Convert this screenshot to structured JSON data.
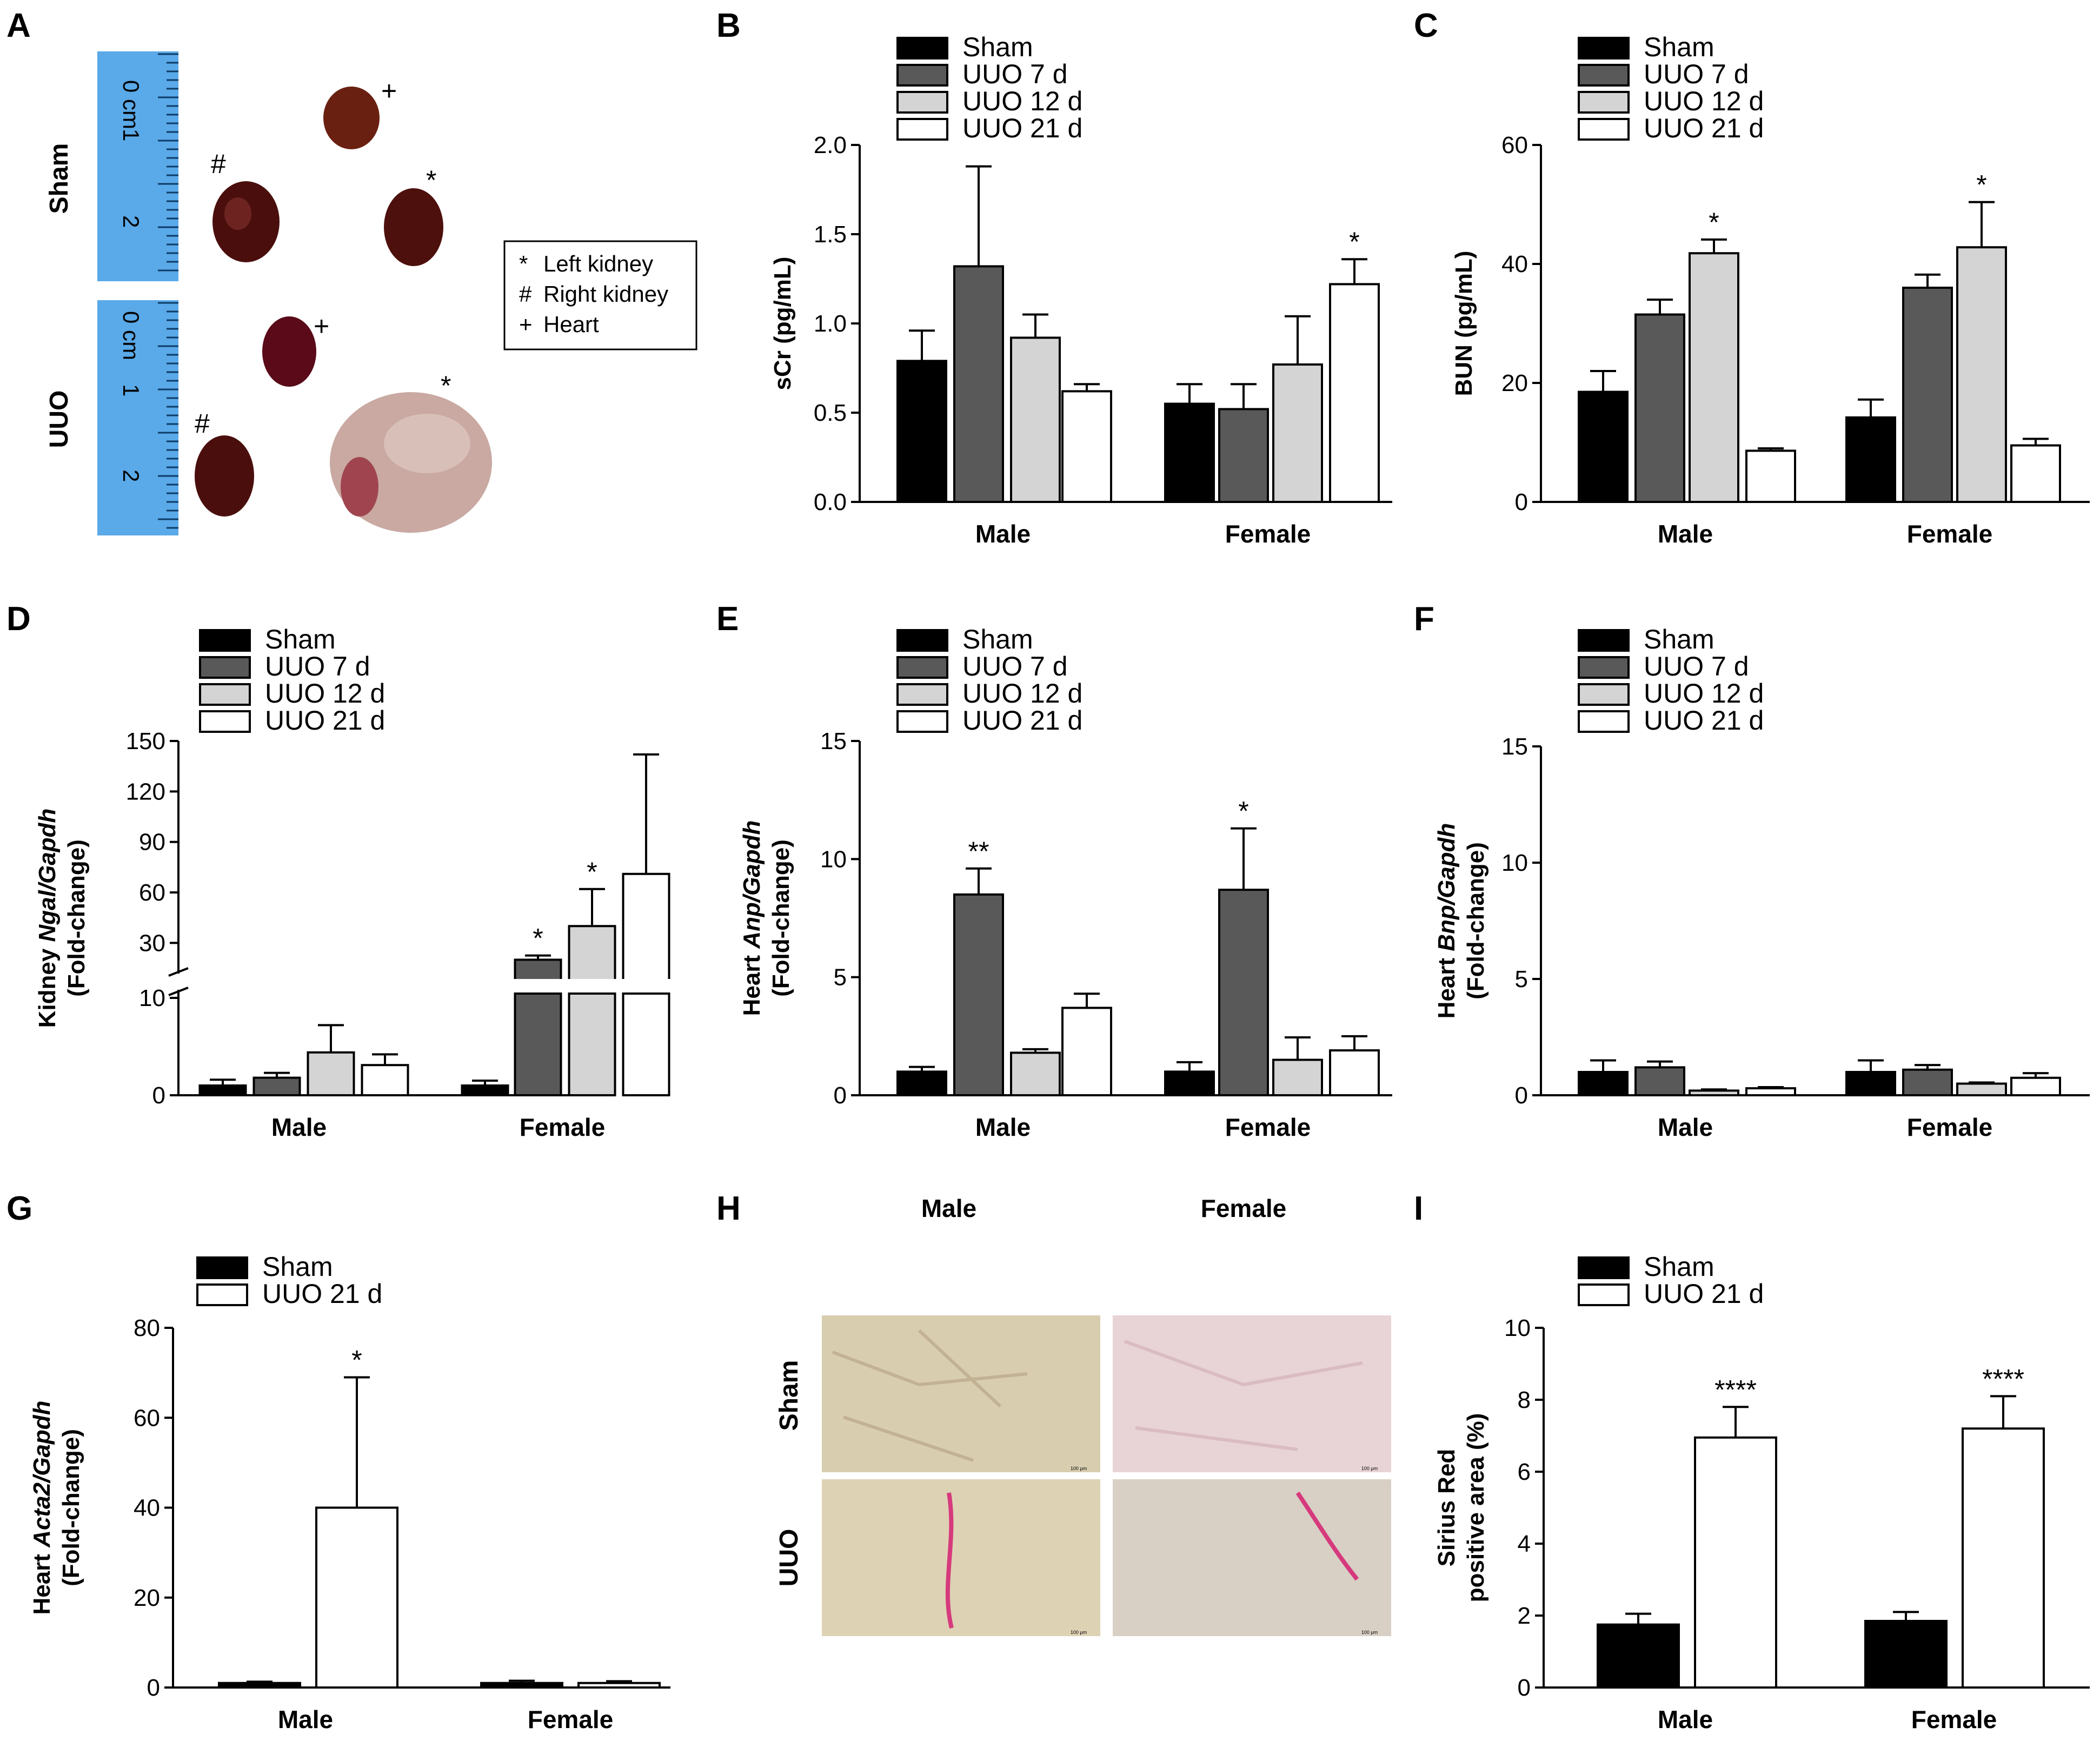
{
  "figure": {
    "panelA": {
      "label": "A",
      "row_labels": [
        "Sham",
        "UUO"
      ],
      "ruler_numbers": [
        "0 cm",
        "1",
        "2"
      ],
      "organ_marks": {
        "kidney_left": "*",
        "kidney_right": "#",
        "heart": "+"
      },
      "key": [
        {
          "symbol": "*",
          "text": "Left kidney"
        },
        {
          "symbol": "#",
          "text": "Right kidney"
        },
        {
          "symbol": "+",
          "text": "Heart"
        }
      ]
    },
    "panelH": {
      "label": "H",
      "col_labels": [
        "Male",
        "Female"
      ],
      "row_labels": [
        "Sham",
        "UUO"
      ],
      "scale_bar": "100 μm"
    }
  },
  "colors": {
    "sham": "#000000",
    "uuo7": "#595959",
    "uuo12": "#d4d4d4",
    "uuo21": "#ffffff"
  },
  "chart_data": [
    {
      "panel": "B",
      "type": "bar",
      "ylabel": "sCr (pg/mL)",
      "ylabel_parts": [
        "sCr (pg/mL)"
      ],
      "categories": [
        "Male",
        "Female"
      ],
      "ylim": [
        0,
        2.0
      ],
      "yticks": [
        0.0,
        0.5,
        1.0,
        1.5,
        2.0
      ],
      "yticklabels": [
        "0.0",
        "0.5",
        "1.0",
        "1.5",
        "2.0"
      ],
      "legend": [
        "Sham",
        "UUO 7 d",
        "UUO 12 d",
        "UUO 21 d"
      ],
      "series": [
        {
          "name": "Sham",
          "values": [
            0.79,
            0.55
          ],
          "errors": [
            0.17,
            0.11
          ],
          "stars": [
            "",
            ""
          ]
        },
        {
          "name": "UUO 7 d",
          "values": [
            1.32,
            0.52
          ],
          "errors": [
            0.56,
            0.14
          ],
          "stars": [
            "",
            ""
          ]
        },
        {
          "name": "UUO 12 d",
          "values": [
            0.92,
            0.77
          ],
          "errors": [
            0.13,
            0.27
          ],
          "stars": [
            "",
            ""
          ]
        },
        {
          "name": "UUO 21 d",
          "values": [
            0.62,
            1.22
          ],
          "errors": [
            0.04,
            0.14
          ],
          "stars": [
            "",
            "*"
          ]
        }
      ]
    },
    {
      "panel": "C",
      "type": "bar",
      "ylabel": "BUN (pg/mL)",
      "ylabel_parts": [
        "BUN (pg/mL)"
      ],
      "categories": [
        "Male",
        "Female"
      ],
      "ylim": [
        0,
        60
      ],
      "yticks": [
        0,
        20,
        40,
        60
      ],
      "yticklabels": [
        "0",
        "20",
        "40",
        "60"
      ],
      "legend": [
        "Sham",
        "UUO 7 d",
        "UUO 12 d",
        "UUO 21 d"
      ],
      "series": [
        {
          "name": "Sham",
          "values": [
            18.5,
            14.2
          ],
          "errors": [
            3.5,
            3.0
          ],
          "stars": [
            "",
            ""
          ]
        },
        {
          "name": "UUO 7 d",
          "values": [
            31.5,
            36.0
          ],
          "errors": [
            2.5,
            2.2
          ],
          "stars": [
            "",
            ""
          ]
        },
        {
          "name": "UUO 12 d",
          "values": [
            41.8,
            42.8
          ],
          "errors": [
            2.3,
            7.6
          ],
          "stars": [
            "*",
            "*"
          ]
        },
        {
          "name": "UUO 21 d",
          "values": [
            8.6,
            9.5
          ],
          "errors": [
            0.4,
            1.1
          ],
          "stars": [
            "",
            ""
          ]
        }
      ]
    },
    {
      "panel": "D",
      "type": "bar",
      "ylabel": "Kidney Ngal/Gapdh (Fold-change)",
      "ylabel_parts": [
        "Kidney ",
        "Ngal/Gapdh"
      ],
      "ylabel_line2": "(Fold-change)",
      "categories": [
        "Male",
        "Female"
      ],
      "broken_axis": true,
      "ylim_lower": [
        0,
        10
      ],
      "ylim_upper": [
        15,
        150
      ],
      "yticks": [
        0,
        10,
        30,
        60,
        90,
        120,
        150
      ],
      "yticklabels": [
        "0",
        "10",
        "30",
        "60",
        "90",
        "120",
        "150"
      ],
      "legend": [
        "Sham",
        "UUO 7 d",
        "UUO 12 d",
        "UUO 21 d"
      ],
      "series": [
        {
          "name": "Sham",
          "values": [
            1.0,
            1.0
          ],
          "errors": [
            0.6,
            0.5
          ],
          "stars": [
            "",
            ""
          ]
        },
        {
          "name": "UUO 7 d",
          "values": [
            1.8,
            20.0
          ],
          "errors": [
            0.5,
            2.5
          ],
          "stars": [
            "",
            "*"
          ]
        },
        {
          "name": "UUO 12 d",
          "values": [
            4.4,
            40.0
          ],
          "errors": [
            2.8,
            22.0
          ],
          "stars": [
            "",
            "*"
          ]
        },
        {
          "name": "UUO 21 d",
          "values": [
            3.1,
            71.0
          ],
          "errors": [
            1.1,
            71.0
          ],
          "stars": [
            "",
            ""
          ]
        }
      ]
    },
    {
      "panel": "E",
      "type": "bar",
      "ylabel": "Heart Anp/Gapdh (Fold-change)",
      "ylabel_parts": [
        "Heart ",
        "Anp/Gapdh"
      ],
      "ylabel_line2": "(Fold-change)",
      "categories": [
        "Male",
        "Female"
      ],
      "ylim": [
        0,
        15
      ],
      "yticks": [
        0,
        5,
        10,
        15
      ],
      "yticklabels": [
        "0",
        "5",
        "10",
        "15"
      ],
      "legend": [
        "Sham",
        "UUO 7 d",
        "UUO 12 d",
        "UUO 21 d"
      ],
      "series": [
        {
          "name": "Sham",
          "values": [
            1.0,
            1.0
          ],
          "errors": [
            0.2,
            0.4
          ],
          "stars": [
            "",
            ""
          ]
        },
        {
          "name": "UUO 7 d",
          "values": [
            8.5,
            8.7
          ],
          "errors": [
            1.1,
            2.6
          ],
          "stars": [
            "**",
            "*"
          ]
        },
        {
          "name": "UUO 12 d",
          "values": [
            1.8,
            1.5
          ],
          "errors": [
            0.15,
            0.95
          ],
          "stars": [
            "",
            ""
          ]
        },
        {
          "name": "UUO 21 d",
          "values": [
            3.7,
            1.9
          ],
          "errors": [
            0.6,
            0.6
          ],
          "stars": [
            "",
            ""
          ]
        }
      ]
    },
    {
      "panel": "F",
      "type": "bar",
      "ylabel": "Heart Bnp/Gapdh (Fold-change)",
      "ylabel_parts": [
        "Heart ",
        "Bnp/Gapdh"
      ],
      "ylabel_line2": "(Fold-change)",
      "categories": [
        "Male",
        "Female"
      ],
      "ylim": [
        0,
        15
      ],
      "yticks": [
        0,
        5,
        10,
        15
      ],
      "yticklabels": [
        "0",
        "5",
        "10",
        "15"
      ],
      "legend": [
        "Sham",
        "UUO 7 d",
        "UUO 12 d",
        "UUO 21 d"
      ],
      "series": [
        {
          "name": "Sham",
          "values": [
            1.0,
            1.0
          ],
          "errors": [
            0.5,
            0.5
          ],
          "stars": [
            "",
            ""
          ]
        },
        {
          "name": "UUO 7 d",
          "values": [
            1.2,
            1.1
          ],
          "errors": [
            0.25,
            0.2
          ],
          "stars": [
            "",
            ""
          ]
        },
        {
          "name": "UUO 12 d",
          "values": [
            0.2,
            0.5
          ],
          "errors": [
            0.05,
            0.05
          ],
          "stars": [
            "",
            ""
          ]
        },
        {
          "name": "UUO 21 d",
          "values": [
            0.3,
            0.75
          ],
          "errors": [
            0.05,
            0.2
          ],
          "stars": [
            "",
            ""
          ]
        }
      ]
    },
    {
      "panel": "G",
      "type": "bar",
      "ylabel": "Heart Acta2/Gapdh (Fold-change)",
      "ylabel_parts": [
        "Heart ",
        "Acta2/Gapdh"
      ],
      "ylabel_line2": "(Fold-change)",
      "categories": [
        "Male",
        "Female"
      ],
      "ylim": [
        0,
        80
      ],
      "yticks": [
        0,
        20,
        40,
        60,
        80
      ],
      "yticklabels": [
        "0",
        "20",
        "40",
        "60",
        "80"
      ],
      "legend": [
        "Sham",
        "UUO 21 d"
      ],
      "series": [
        {
          "name": "Sham",
          "values": [
            1.0,
            1.0
          ],
          "errors": [
            0.3,
            0.5
          ],
          "stars": [
            "",
            ""
          ]
        },
        {
          "name": "UUO 21 d",
          "values": [
            40.0,
            1.0
          ],
          "errors": [
            29.0,
            0.4
          ],
          "stars": [
            "*",
            ""
          ]
        }
      ]
    },
    {
      "panel": "I",
      "type": "bar",
      "ylabel": "Sirius Red positive area (%)",
      "ylabel_parts": [
        "Sirius Red"
      ],
      "ylabel_line2": "positive area (%)",
      "categories": [
        "Male",
        "Female"
      ],
      "ylim": [
        0,
        10
      ],
      "yticks": [
        0,
        2,
        4,
        6,
        8,
        10
      ],
      "yticklabels": [
        "0",
        "2",
        "4",
        "6",
        "8",
        "10"
      ],
      "legend": [
        "Sham",
        "UUO 21 d"
      ],
      "series": [
        {
          "name": "Sham",
          "values": [
            1.75,
            1.85
          ],
          "errors": [
            0.3,
            0.25
          ],
          "stars": [
            "",
            ""
          ]
        },
        {
          "name": "UUO 21 d",
          "values": [
            6.95,
            7.2
          ],
          "errors": [
            0.85,
            0.9
          ],
          "stars": [
            "****",
            "****"
          ]
        }
      ]
    }
  ]
}
